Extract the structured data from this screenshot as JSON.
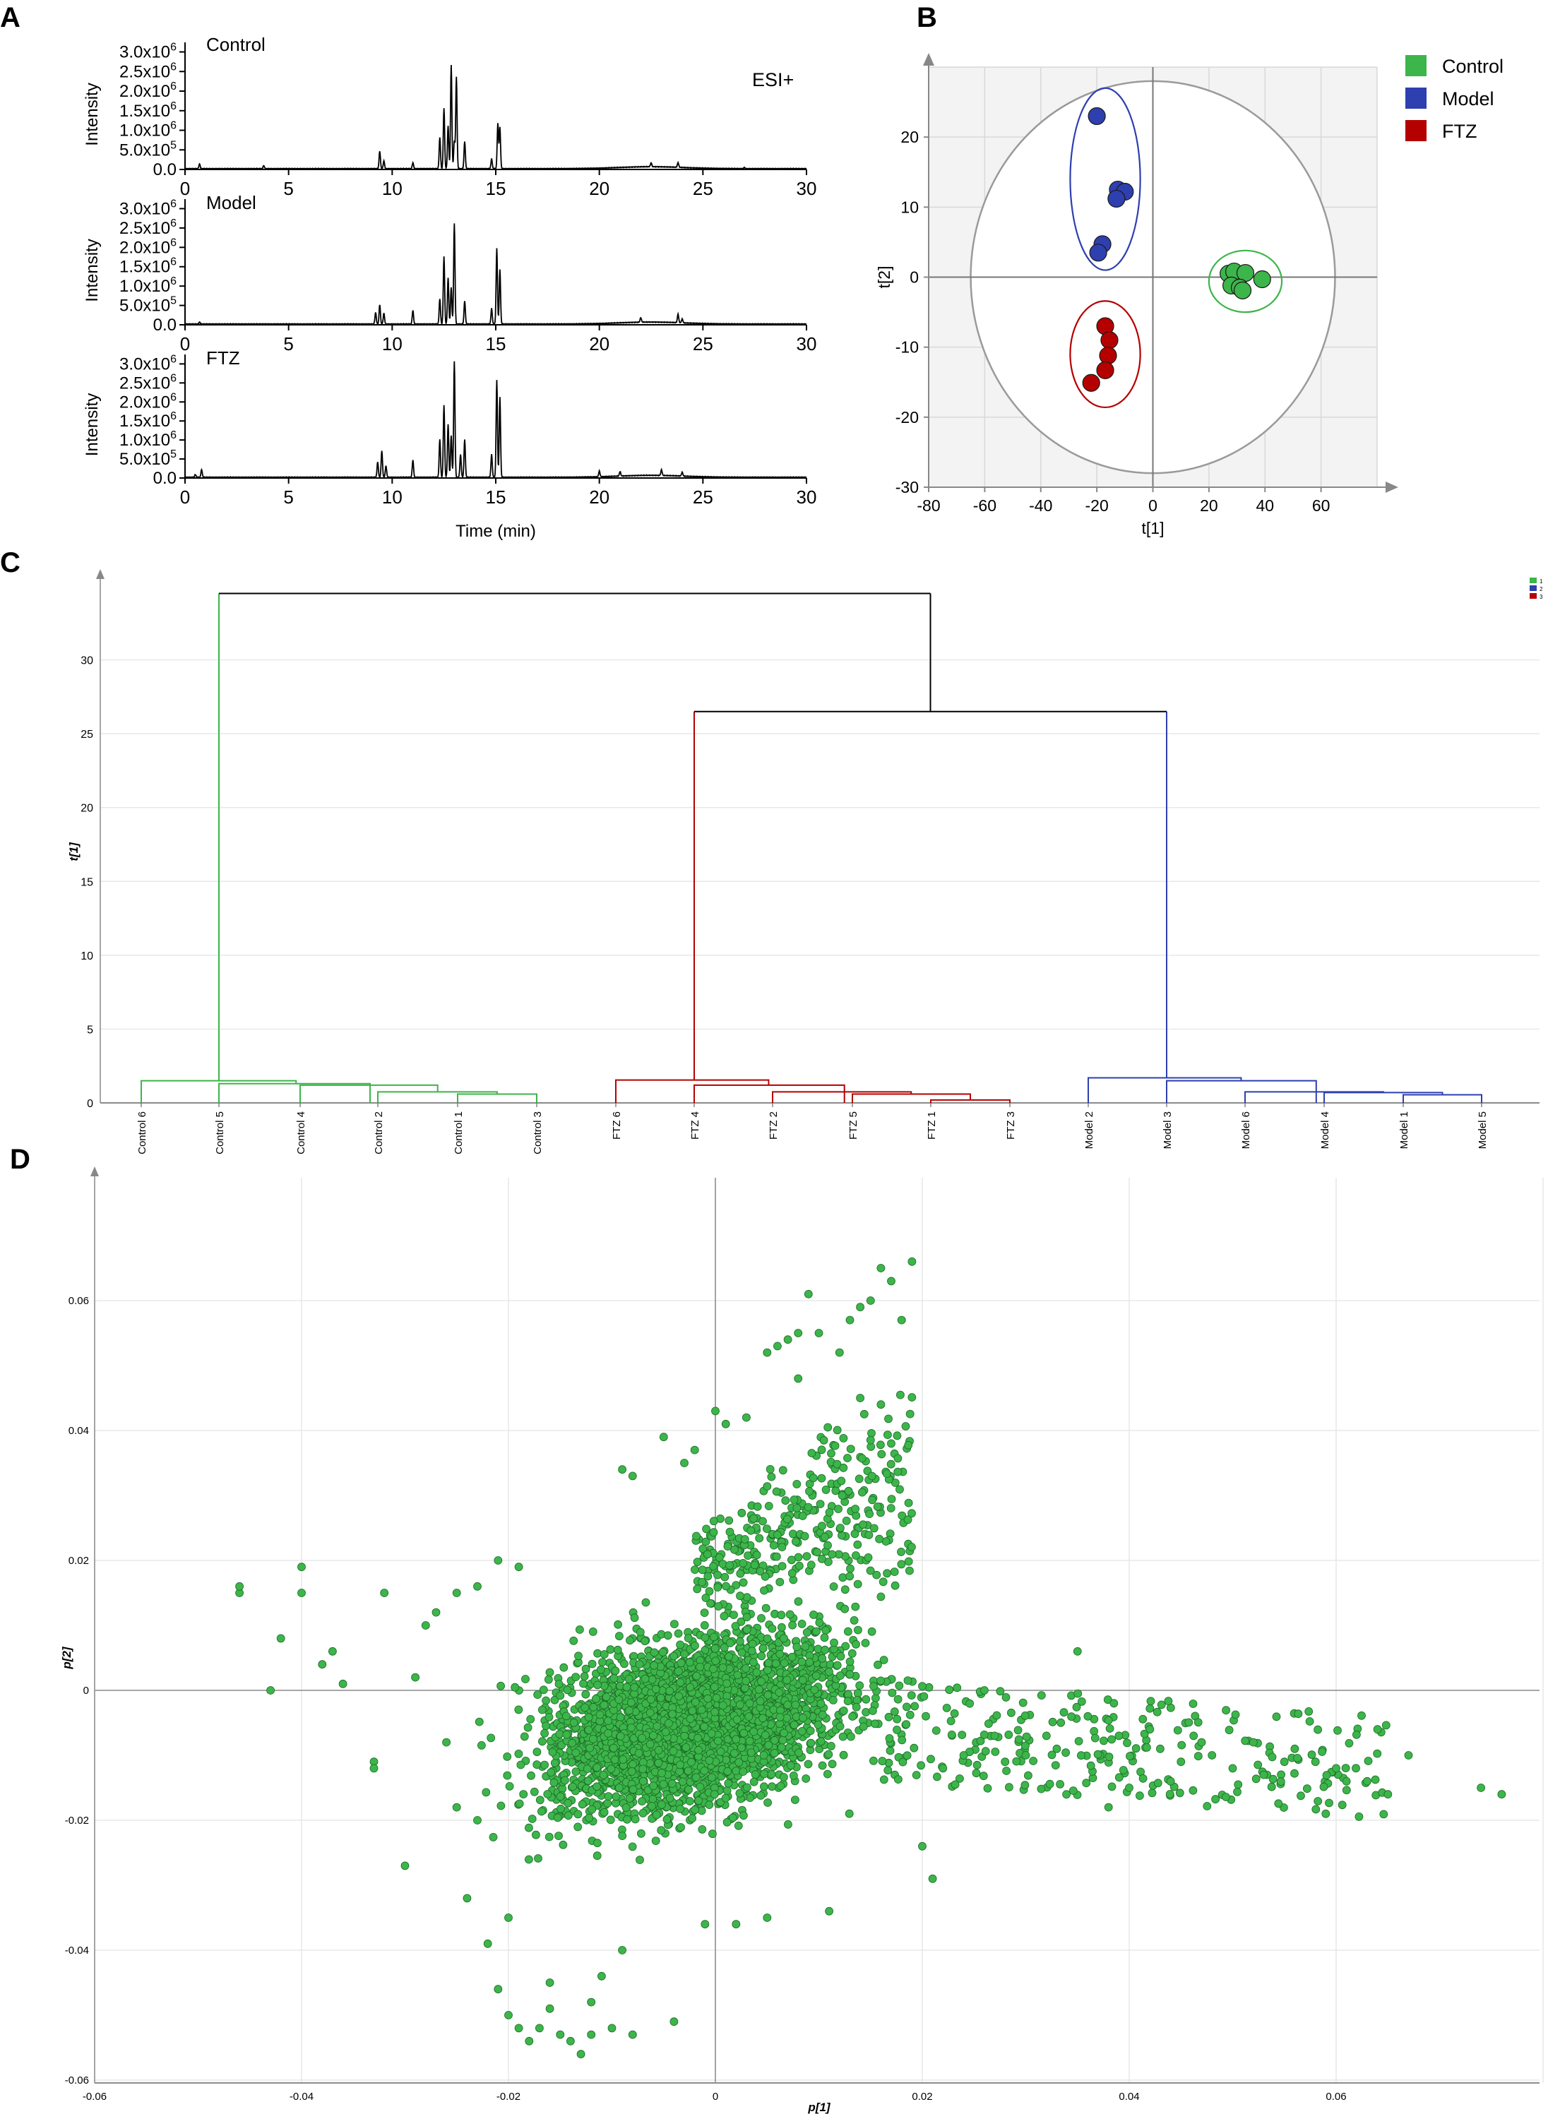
{
  "panels": {
    "a": "A",
    "b": "B",
    "c": "C",
    "d": "D"
  },
  "chart_data": [
    {
      "type": "line",
      "panel": "A",
      "mode_label": "ESI+",
      "xlabel": "Time (min)",
      "ylabel": "Intensity",
      "xlim": [
        0,
        30
      ],
      "x_ticks": [
        "0",
        "5",
        "10",
        "15",
        "20",
        "25",
        "30"
      ],
      "y_ticks": [
        {
          "v": 0.0,
          "mant": "0.0",
          "exp": ""
        },
        {
          "v": 500000.0,
          "mant": "5.0x10",
          "exp": "5"
        },
        {
          "v": 1000000.0,
          "mant": "1.0x10",
          "exp": "6"
        },
        {
          "v": 1500000.0,
          "mant": "1.5x10",
          "exp": "6"
        },
        {
          "v": 2000000.0,
          "mant": "2.0x10",
          "exp": "6"
        },
        {
          "v": 2500000.0,
          "mant": "2.5x10",
          "exp": "6"
        },
        {
          "v": 3000000.0,
          "mant": "3.0x10",
          "exp": "6"
        }
      ],
      "ylim": [
        0,
        3100000.0
      ],
      "series": [
        {
          "name": "Control",
          "peaks": [
            [
              0.7,
              120000.0
            ],
            [
              3.8,
              80000.0
            ],
            [
              9.4,
              450000.0
            ],
            [
              9.6,
              200000.0
            ],
            [
              11.0,
              150000.0
            ],
            [
              12.3,
              800000.0
            ],
            [
              12.5,
              1550000.0
            ],
            [
              12.7,
              1100000.0
            ],
            [
              12.85,
              2650000.0
            ],
            [
              13.0,
              700000.0
            ],
            [
              13.1,
              2350000.0
            ],
            [
              13.5,
              700000.0
            ],
            [
              14.8,
              250000.0
            ],
            [
              15.1,
              1150000.0
            ],
            [
              15.2,
              1050000.0
            ],
            [
              22.5,
              100000.0
            ],
            [
              23.8,
              120000.0
            ],
            [
              27.0,
              30000.0
            ]
          ]
        },
        {
          "name": "Model",
          "peaks": [
            [
              0.7,
              50000.0
            ],
            [
              9.2,
              300000.0
            ],
            [
              9.4,
              500000.0
            ],
            [
              9.6,
              280000.0
            ],
            [
              11.0,
              350000.0
            ],
            [
              12.3,
              650000.0
            ],
            [
              12.5,
              1750000.0
            ],
            [
              12.7,
              1200000.0
            ],
            [
              12.85,
              950000.0
            ],
            [
              13.0,
              2600000.0
            ],
            [
              13.5,
              600000.0
            ],
            [
              14.8,
              400000.0
            ],
            [
              15.05,
              1950000.0
            ],
            [
              15.2,
              1400000.0
            ],
            [
              22.0,
              120000.0
            ],
            [
              23.8,
              220000.0
            ],
            [
              24.0,
              100000.0
            ]
          ]
        },
        {
          "name": "FTZ",
          "peaks": [
            [
              0.5,
              70000.0
            ],
            [
              0.8,
              200000.0
            ],
            [
              9.3,
              400000.0
            ],
            [
              9.5,
              700000.0
            ],
            [
              9.7,
              300000.0
            ],
            [
              11.0,
              450000.0
            ],
            [
              12.3,
              1000000.0
            ],
            [
              12.5,
              1900000.0
            ],
            [
              12.7,
              1400000.0
            ],
            [
              12.85,
              1100000.0
            ],
            [
              13.0,
              3050000.0
            ],
            [
              13.3,
              600000.0
            ],
            [
              13.5,
              1000000.0
            ],
            [
              14.8,
              600000.0
            ],
            [
              15.05,
              2550000.0
            ],
            [
              15.2,
              2100000.0
            ],
            [
              20.0,
              150000.0
            ],
            [
              21.0,
              120000.0
            ],
            [
              23.0,
              150000.0
            ],
            [
              24.0,
              100000.0
            ]
          ]
        }
      ]
    },
    {
      "type": "scatter",
      "panel": "B",
      "xlabel": "t[1]",
      "ylabel": "t[2]",
      "xlim": [
        -80,
        80
      ],
      "ylim": [
        -30,
        30
      ],
      "x_ticks": [
        "-80",
        "-60",
        "-40",
        "-20",
        "0",
        "20",
        "40",
        "60"
      ],
      "y_ticks": [
        "20",
        "10",
        "0",
        "-10",
        "-20",
        "-30"
      ],
      "hotelling_radius": [
        65,
        28
      ],
      "legend_position": "right",
      "series": [
        {
          "name": "Control",
          "color": "#3cb54a",
          "points": [
            [
              27,
              0.5
            ],
            [
              29,
              0.8
            ],
            [
              33,
              0.6
            ],
            [
              28,
              -1.2
            ],
            [
              31,
              -1.5
            ],
            [
              32,
              -1.9
            ],
            [
              39,
              -0.3
            ]
          ],
          "ellipse": {
            "cx": 33,
            "cy": -0.6,
            "rx": 13,
            "ry": 4.4
          }
        },
        {
          "name": "Model",
          "color": "#2e3fb0",
          "points": [
            [
              -20,
              23
            ],
            [
              -12.5,
              12.5
            ],
            [
              -10,
              12.2
            ],
            [
              -13,
              11.2
            ],
            [
              -18,
              4.7
            ],
            [
              -19.5,
              3.5
            ]
          ],
          "ellipse": {
            "cx": -17,
            "cy": 14,
            "rx": 12.5,
            "ry": 13
          }
        },
        {
          "name": "FTZ",
          "color": "#b50000",
          "points": [
            [
              -17,
              -7
            ],
            [
              -15.5,
              -9
            ],
            [
              -16,
              -11.2
            ],
            [
              -17,
              -13.3
            ],
            [
              -22,
              -15.1
            ]
          ],
          "ellipse": {
            "cx": -17,
            "cy": -11,
            "rx": 12.5,
            "ry": 7.6
          }
        }
      ]
    },
    {
      "type": "dendrogram",
      "panel": "C",
      "ylabel": "t[1]",
      "ylim": [
        0,
        35
      ],
      "y_ticks": [
        "0",
        "5",
        "10",
        "15",
        "20",
        "25",
        "30"
      ],
      "legend": [
        {
          "label": "1",
          "color": "#3cb54a"
        },
        {
          "label": "2",
          "color": "#2e3fb0"
        },
        {
          "label": "3",
          "color": "#b50000"
        }
      ],
      "leaves": [
        "Control 6",
        "Control 5",
        "Control 4",
        "Control 2",
        "Control 1",
        "Control 3",
        "FTZ 6",
        "FTZ 4",
        "FTZ 2",
        "FTZ 5",
        "FTZ 1",
        "FTZ 3",
        "Model 2",
        "Model 3",
        "Model 6",
        "Model 4",
        "Model 1",
        "Model 5"
      ],
      "clusters": [
        {
          "color": "#3cb54a",
          "top": 34.5,
          "stem_leaf": 1,
          "merges": [
            [
              4,
              5,
              0.6
            ],
            [
              3,
              4.5,
              0.75
            ],
            [
              2,
              3.75,
              1.2
            ],
            [
              1,
              2.9,
              1.3
            ],
            [
              0,
              1.95,
              1.5
            ]
          ]
        },
        {
          "color": "#b50000",
          "top": 26.5,
          "stem_leaf": 7,
          "merges": [
            [
              10,
              11,
              0.2
            ],
            [
              9,
              10.5,
              0.6
            ],
            [
              8,
              9.75,
              0.75
            ],
            [
              7,
              8.9,
              1.2
            ],
            [
              6,
              7.95,
              1.55
            ]
          ]
        },
        {
          "color": "#2e3fb0",
          "top": 26.5,
          "stem_leaf": 13,
          "merges": [
            [
              16,
              17,
              0.55
            ],
            [
              15,
              16.5,
              0.7
            ],
            [
              14,
              15.75,
              0.75
            ],
            [
              13,
              14.9,
              1.5
            ],
            [
              12,
              13.95,
              1.7
            ]
          ]
        }
      ],
      "join_ftz_model": 26.5,
      "join_root": 34.5
    },
    {
      "type": "scatter",
      "panel": "D",
      "xlabel": "p[1]",
      "ylabel": "p[2]",
      "xlim": [
        -0.06,
        0.08
      ],
      "ylim": [
        -0.06,
        0.08
      ],
      "x_ticks": [
        "-0.06",
        "-0.04",
        "-0.02",
        "0",
        "0.02",
        "0.04",
        "0.06"
      ],
      "y_ticks": [
        "0.06",
        "0.04",
        "0.02",
        "0",
        "-0.02",
        "-0.04",
        "-0.06"
      ],
      "color": "#3cb54a",
      "points": [
        [
          -0.046,
          0.015
        ],
        [
          -0.046,
          0.016
        ],
        [
          -0.043,
          0
        ],
        [
          -0.042,
          0.008
        ],
        [
          -0.04,
          0.019
        ],
        [
          -0.04,
          0.015
        ],
        [
          -0.038,
          0.004
        ],
        [
          -0.037,
          0.006
        ],
        [
          -0.036,
          0.001
        ],
        [
          -0.033,
          -0.011
        ],
        [
          -0.033,
          -0.012
        ],
        [
          -0.032,
          0.015
        ],
        [
          -0.03,
          -0.027
        ],
        [
          -0.029,
          0.002
        ],
        [
          -0.028,
          0.01
        ],
        [
          -0.027,
          0.012
        ],
        [
          -0.026,
          -0.008
        ],
        [
          -0.025,
          0.015
        ],
        [
          -0.025,
          -0.018
        ],
        [
          -0.024,
          -0.032
        ],
        [
          -0.023,
          0.016
        ],
        [
          -0.023,
          -0.02
        ],
        [
          -0.022,
          -0.039
        ],
        [
          -0.021,
          0.02
        ],
        [
          -0.021,
          -0.046
        ],
        [
          -0.02,
          -0.05
        ],
        [
          -0.02,
          -0.035
        ],
        [
          -0.019,
          0.019
        ],
        [
          -0.019,
          -0.052
        ],
        [
          -0.018,
          -0.054
        ],
        [
          -0.017,
          -0.052
        ],
        [
          -0.016,
          -0.045
        ],
        [
          -0.016,
          -0.049
        ],
        [
          -0.015,
          -0.053
        ],
        [
          -0.014,
          -0.054
        ],
        [
          -0.013,
          -0.056
        ],
        [
          -0.012,
          -0.048
        ],
        [
          -0.012,
          -0.053
        ],
        [
          -0.011,
          -0.044
        ],
        [
          -0.01,
          -0.052
        ],
        [
          -0.009,
          0.034
        ],
        [
          -0.009,
          -0.04
        ],
        [
          -0.008,
          0.033
        ],
        [
          -0.008,
          -0.053
        ],
        [
          -0.005,
          0.039
        ],
        [
          -0.004,
          -0.051
        ],
        [
          -0.003,
          0.035
        ],
        [
          -0.002,
          0.037
        ],
        [
          -0.001,
          -0.036
        ],
        [
          0,
          0.043
        ],
        [
          0.001,
          0.041
        ],
        [
          0.002,
          -0.036
        ],
        [
          0.003,
          0.042
        ],
        [
          0.005,
          0.052
        ],
        [
          0.005,
          -0.035
        ],
        [
          0.006,
          0.053
        ],
        [
          0.007,
          0.054
        ],
        [
          0.008,
          0.048
        ],
        [
          0.008,
          0.055
        ],
        [
          0.009,
          0.061
        ],
        [
          0.01,
          0.055
        ],
        [
          0.011,
          -0.034
        ],
        [
          0.012,
          0.052
        ],
        [
          0.013,
          0.057
        ],
        [
          0.014,
          0.059
        ],
        [
          0.014,
          0.045
        ],
        [
          0.015,
          0.06
        ],
        [
          0.016,
          0.065
        ],
        [
          0.016,
          0.044
        ],
        [
          0.017,
          0.063
        ],
        [
          0.017,
          0.038
        ],
        [
          0.018,
          0.057
        ],
        [
          0.019,
          0.066
        ],
        [
          0.02,
          -0.024
        ],
        [
          0.021,
          -0.029
        ],
        [
          0.022,
          -0.012
        ],
        [
          0.024,
          -0.01
        ],
        [
          0.026,
          0
        ],
        [
          0.027,
          -0.007
        ],
        [
          0.028,
          -0.011
        ],
        [
          0.03,
          -0.01
        ],
        [
          0.032,
          -0.007
        ],
        [
          0.033,
          -0.009
        ],
        [
          0.035,
          0.006
        ],
        [
          0.036,
          -0.004
        ],
        [
          0.038,
          -0.018
        ],
        [
          0.039,
          -0.007
        ],
        [
          0.04,
          -0.015
        ],
        [
          0.042,
          -0.006
        ],
        [
          0.043,
          -0.009
        ],
        [
          0.044,
          -0.014
        ],
        [
          0.045,
          -0.011
        ],
        [
          0.047,
          -0.008
        ],
        [
          0.048,
          -0.01
        ],
        [
          0.05,
          -0.012
        ],
        [
          0.052,
          -0.008
        ],
        [
          0.053,
          -0.013
        ],
        [
          0.055,
          -0.011
        ],
        [
          0.056,
          -0.009
        ],
        [
          0.058,
          -0.011
        ],
        [
          0.059,
          -0.019
        ],
        [
          0.06,
          -0.012
        ],
        [
          0.061,
          -0.014
        ],
        [
          0.063,
          -0.014
        ],
        [
          0.064,
          -0.006
        ],
        [
          0.065,
          -0.016
        ],
        [
          0.067,
          -0.01
        ],
        [
          0.074,
          -0.015
        ],
        [
          0.076,
          -0.016
        ]
      ],
      "cloud": {
        "count": 3600,
        "seed": 7
      }
    }
  ]
}
